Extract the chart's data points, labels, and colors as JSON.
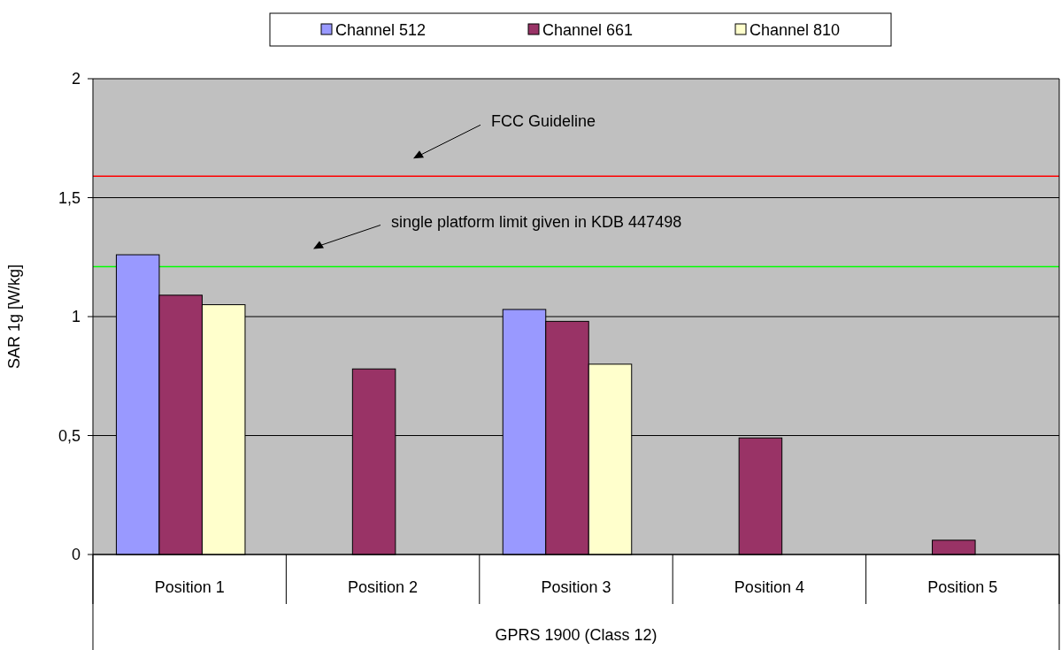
{
  "chart_data": {
    "type": "bar",
    "categories": [
      "Position 1",
      "Position 2",
      "Position 3",
      "Position 4",
      "Position 5"
    ],
    "xlabel": "GPRS 1900 (Class 12)",
    "ylabel": "SAR 1g [W/kg]",
    "series": [
      {
        "name": "Channel 512",
        "color": "#9999ff",
        "values": [
          1.26,
          null,
          1.03,
          null,
          null
        ]
      },
      {
        "name": "Channel 661",
        "color": "#993366",
        "values": [
          1.09,
          0.78,
          0.98,
          0.49,
          0.06
        ]
      },
      {
        "name": "Channel 810",
        "color": "#ffffcc",
        "values": [
          1.05,
          null,
          0.8,
          null,
          null
        ]
      }
    ],
    "ylim": [
      0,
      2
    ],
    "yticks": [
      0,
      {
        "value": 0.5,
        "label": "0,5"
      },
      1,
      {
        "value": 1.5,
        "label": "1,5"
      },
      2
    ],
    "grid": "y",
    "legend": "top",
    "ref_lines": [
      {
        "axis": "y",
        "value": 1.59,
        "label": "FCC Guideline",
        "color": "#ff0000"
      },
      {
        "axis": "y",
        "value": 1.21,
        "label": "single platform limit given in KDB 447498",
        "color": "#00ff00"
      }
    ]
  }
}
